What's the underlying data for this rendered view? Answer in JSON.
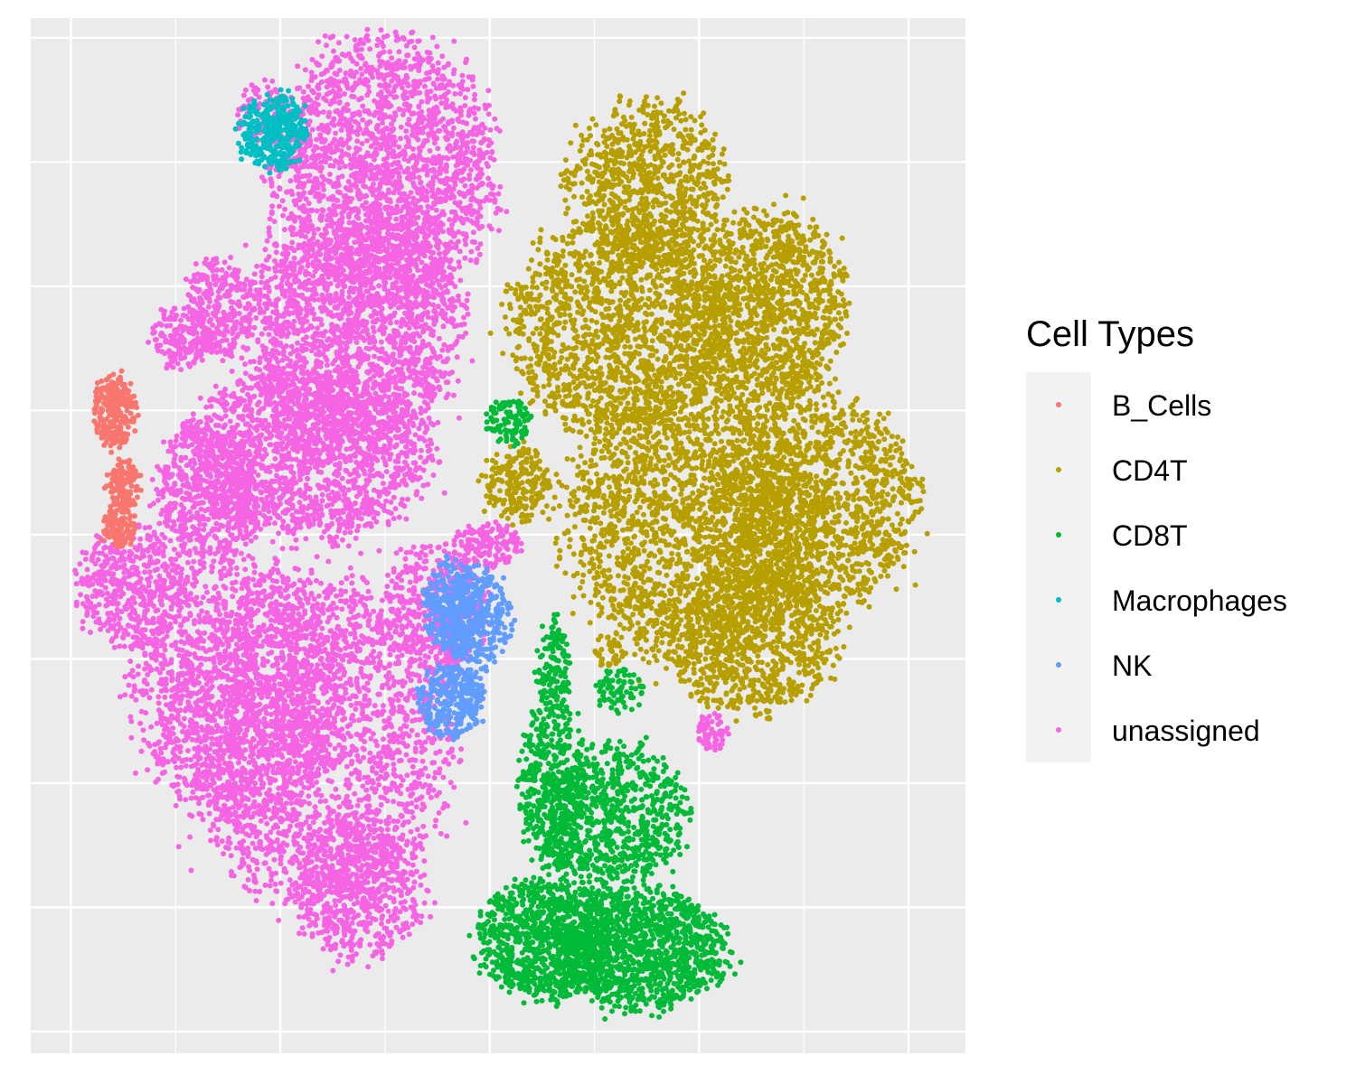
{
  "chart_data": {
    "type": "scatter",
    "title": "",
    "xlabel": "",
    "ylabel": "",
    "xlim": [
      0,
      100
    ],
    "ylim": [
      0,
      100
    ],
    "grid": true,
    "axis_tick_labels_shown": false,
    "background_color": "#EBEBEB",
    "gridline_color": "#FFFFFF",
    "legend": {
      "title": "Cell Types",
      "placement": "right",
      "items": [
        {
          "label": "B_Cells",
          "color": "#F8766D"
        },
        {
          "label": "CD4T",
          "color": "#B79F00"
        },
        {
          "label": "CD8T",
          "color": "#00BA38"
        },
        {
          "label": "Macrophages",
          "color": "#00BFC4"
        },
        {
          "label": "NK",
          "color": "#619CFF"
        },
        {
          "label": "unassigned",
          "color": "#F564E3"
        }
      ]
    },
    "series": [
      {
        "name": "unassigned",
        "color": "#F564E3",
        "clusters": [
          {
            "x": 38,
            "y": 85,
            "rx": 10,
            "ry": 11,
            "n": 2200
          },
          {
            "x": 34,
            "y": 70,
            "rx": 10,
            "ry": 10,
            "n": 2000
          },
          {
            "x": 30,
            "y": 58,
            "rx": 11,
            "ry": 7,
            "n": 1600
          },
          {
            "x": 19,
            "y": 54,
            "rx": 5,
            "ry": 6,
            "n": 600
          },
          {
            "x": 20,
            "y": 72,
            "rx": 3,
            "ry": 4,
            "n": 250
          },
          {
            "x": 16,
            "y": 69,
            "rx": 3,
            "ry": 2.5,
            "n": 180
          },
          {
            "x": 11,
            "y": 45,
            "rx": 5,
            "ry": 5,
            "n": 500
          },
          {
            "x": 22,
            "y": 35,
            "rx": 9,
            "ry": 11,
            "n": 1600
          },
          {
            "x": 31,
            "y": 30,
            "rx": 12,
            "ry": 14,
            "n": 2200
          },
          {
            "x": 35,
            "y": 16,
            "rx": 6,
            "ry": 6,
            "n": 600
          },
          {
            "x": 43,
            "y": 43,
            "rx": 5,
            "ry": 5,
            "n": 400
          },
          {
            "x": 49,
            "y": 49,
            "rx": 3,
            "ry": 2,
            "n": 150
          },
          {
            "x": 73,
            "y": 31,
            "rx": 1.5,
            "ry": 1.5,
            "n": 60
          },
          {
            "x": 25,
            "y": 91,
            "rx": 2.5,
            "ry": 2.5,
            "n": 80
          },
          {
            "x": 45,
            "y": 38,
            "rx": 1.5,
            "ry": 1.5,
            "n": 40
          }
        ]
      },
      {
        "name": "CD4T",
        "color": "#B79F00",
        "clusters": [
          {
            "x": 66,
            "y": 84,
            "rx": 7,
            "ry": 7,
            "n": 900
          },
          {
            "x": 63,
            "y": 70,
            "rx": 10,
            "ry": 9,
            "n": 1500
          },
          {
            "x": 79,
            "y": 72,
            "rx": 7,
            "ry": 8,
            "n": 1200
          },
          {
            "x": 70,
            "y": 52,
            "rx": 11,
            "ry": 12,
            "n": 2000
          },
          {
            "x": 84,
            "y": 53,
            "rx": 9,
            "ry": 9,
            "n": 1400
          },
          {
            "x": 77,
            "y": 40,
            "rx": 8,
            "ry": 6,
            "n": 900
          },
          {
            "x": 52,
            "y": 55,
            "rx": 3,
            "ry": 3,
            "n": 200
          },
          {
            "x": 62,
            "y": 39,
            "rx": 1.5,
            "ry": 1.5,
            "n": 40
          }
        ]
      },
      {
        "name": "CD8T",
        "color": "#00BA38",
        "clusters": [
          {
            "x": 55,
            "y": 11,
            "rx": 6,
            "ry": 5,
            "n": 900
          },
          {
            "x": 65,
            "y": 10,
            "rx": 8,
            "ry": 5,
            "n": 1200
          },
          {
            "x": 56,
            "y": 26,
            "rx": 3,
            "ry": 7,
            "n": 400
          },
          {
            "x": 62,
            "y": 23,
            "rx": 7,
            "ry": 6,
            "n": 800
          },
          {
            "x": 56,
            "y": 37,
            "rx": 1.5,
            "ry": 4,
            "n": 150
          },
          {
            "x": 51,
            "y": 61,
            "rx": 2,
            "ry": 2,
            "n": 100
          },
          {
            "x": 63,
            "y": 35,
            "rx": 2,
            "ry": 2,
            "n": 80
          }
        ]
      },
      {
        "name": "NK",
        "color": "#619CFF",
        "clusters": [
          {
            "x": 45,
            "y": 43,
            "rx": 2.5,
            "ry": 4,
            "n": 300
          },
          {
            "x": 48,
            "y": 42,
            "rx": 3,
            "ry": 4,
            "n": 300
          },
          {
            "x": 45,
            "y": 34,
            "rx": 3,
            "ry": 3,
            "n": 300
          }
        ]
      },
      {
        "name": "B_Cells",
        "color": "#F8766D",
        "clusters": [
          {
            "x": 9,
            "y": 62,
            "rx": 2,
            "ry": 3,
            "n": 250
          },
          {
            "x": 10,
            "y": 55,
            "rx": 1.5,
            "ry": 2,
            "n": 120
          },
          {
            "x": 9.5,
            "y": 51,
            "rx": 1.5,
            "ry": 2,
            "n": 120
          }
        ]
      },
      {
        "name": "Macrophages",
        "color": "#00BFC4",
        "clusters": [
          {
            "x": 26,
            "y": 89,
            "rx": 3,
            "ry": 3,
            "n": 350
          }
        ]
      }
    ]
  }
}
